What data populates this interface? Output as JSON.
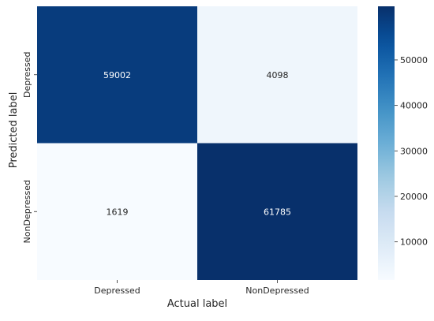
{
  "chart_data": {
    "type": "heatmap",
    "title": "",
    "xlabel": "Actual label",
    "ylabel": "Predicted label",
    "x_categories": [
      "Depressed",
      "NonDepressed"
    ],
    "y_categories": [
      "Depressed",
      "NonDepressed"
    ],
    "values": [
      [
        59002,
        4098
      ],
      [
        1619,
        61785
      ]
    ],
    "cell_labels": [
      [
        "59002",
        "4098"
      ],
      [
        "1619",
        "61785"
      ]
    ],
    "colormap": "Blues",
    "color_range": [
      1619,
      61785
    ],
    "colorbar_ticks": [
      10000,
      20000,
      30000,
      40000,
      50000
    ],
    "colorbar_tick_labels": [
      "10000",
      "20000",
      "30000",
      "40000",
      "50000"
    ],
    "colors": {
      "low": "#f7fbff",
      "high": "#08306b",
      "text_dark": "#262626",
      "text_light": "#ffffff"
    }
  }
}
